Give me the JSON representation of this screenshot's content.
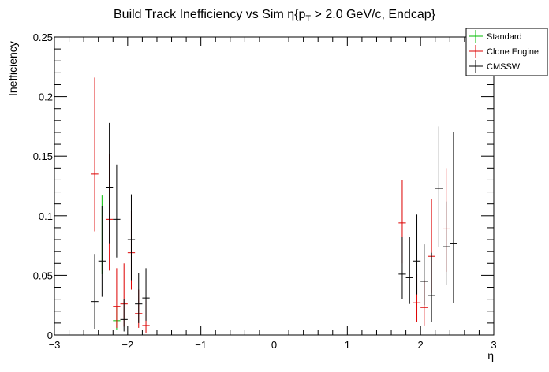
{
  "chart_data": {
    "type": "scatter",
    "title_parts": [
      "Build Track Inefficiency vs Sim η{p",
      "T",
      " > 2.0 GeV/c, Endcap}"
    ],
    "xlabel": "η",
    "ylabel": "Inefficiency",
    "xlim": [
      -3,
      3
    ],
    "ylim": [
      0,
      0.25
    ],
    "xticks": [
      -3,
      -2,
      -1,
      0,
      1,
      2,
      3
    ],
    "xtick_labels": [
      "−3",
      "−2",
      "−1",
      "0",
      "1",
      "2",
      "3"
    ],
    "yticks": [
      0,
      0.05,
      0.1,
      0.15,
      0.2,
      0.25
    ],
    "ytick_labels": [
      "0",
      "0.05",
      "0.1",
      "0.15",
      "0.2",
      "0.25"
    ],
    "grid": false,
    "legend_position": "top-right",
    "series": [
      {
        "name": "Standard",
        "color": "#00bb00",
        "points": [
          {
            "x": -2.35,
            "y": 0.083,
            "xerr": 0.05,
            "ylow": 0.051,
            "yhigh": 0.117
          },
          {
            "x": -2.15,
            "y": 0.012,
            "xerr": 0.05,
            "ylow": 0.004,
            "yhigh": 0.024
          }
        ]
      },
      {
        "name": "Clone Engine",
        "color": "#dd0000",
        "points": [
          {
            "x": -2.45,
            "y": 0.135,
            "xerr": 0.05,
            "ylow": 0.087,
            "yhigh": 0.216
          },
          {
            "x": -2.25,
            "y": 0.097,
            "xerr": 0.05,
            "ylow": 0.054,
            "yhigh": 0.152
          },
          {
            "x": -2.15,
            "y": 0.024,
            "xerr": 0.05,
            "ylow": 0.006,
            "yhigh": 0.056
          },
          {
            "x": -2.05,
            "y": 0.026,
            "xerr": 0.05,
            "ylow": 0.007,
            "yhigh": 0.06
          },
          {
            "x": -1.95,
            "y": 0.069,
            "xerr": 0.05,
            "ylow": 0.038,
            "yhigh": 0.104
          },
          {
            "x": -1.85,
            "y": 0.018,
            "xerr": 0.05,
            "ylow": 0.006,
            "yhigh": 0.038
          },
          {
            "x": -1.75,
            "y": 0.008,
            "xerr": 0.05,
            "ylow": 0.002,
            "yhigh": 0.029
          },
          {
            "x": 1.75,
            "y": 0.094,
            "xerr": 0.05,
            "ylow": 0.06,
            "yhigh": 0.13
          },
          {
            "x": 1.95,
            "y": 0.027,
            "xerr": 0.05,
            "ylow": 0.011,
            "yhigh": 0.051
          },
          {
            "x": 2.05,
            "y": 0.023,
            "xerr": 0.05,
            "ylow": 0.008,
            "yhigh": 0.046
          },
          {
            "x": 2.15,
            "y": 0.066,
            "xerr": 0.05,
            "ylow": 0.035,
            "yhigh": 0.114
          },
          {
            "x": 2.35,
            "y": 0.089,
            "xerr": 0.05,
            "ylow": 0.053,
            "yhigh": 0.14
          }
        ]
      },
      {
        "name": "CMSSW",
        "color": "#000000",
        "points": [
          {
            "x": -2.45,
            "y": 0.028,
            "xerr": 0.05,
            "ylow": 0.005,
            "yhigh": 0.068
          },
          {
            "x": -2.35,
            "y": 0.062,
            "xerr": 0.05,
            "ylow": 0.032,
            "yhigh": 0.108
          },
          {
            "x": -2.25,
            "y": 0.124,
            "xerr": 0.05,
            "ylow": 0.077,
            "yhigh": 0.178
          },
          {
            "x": -2.15,
            "y": 0.097,
            "xerr": 0.05,
            "ylow": 0.065,
            "yhigh": 0.143
          },
          {
            "x": -2.05,
            "y": 0.013,
            "xerr": 0.05,
            "ylow": 0.003,
            "yhigh": 0.03
          },
          {
            "x": -1.95,
            "y": 0.08,
            "xerr": 0.05,
            "ylow": 0.046,
            "yhigh": 0.118
          },
          {
            "x": -1.85,
            "y": 0.026,
            "xerr": 0.05,
            "ylow": 0.01,
            "yhigh": 0.052
          },
          {
            "x": -1.75,
            "y": 0.031,
            "xerr": 0.05,
            "ylow": 0.012,
            "yhigh": 0.056
          },
          {
            "x": 1.75,
            "y": 0.051,
            "xerr": 0.05,
            "ylow": 0.03,
            "yhigh": 0.082
          },
          {
            "x": 1.85,
            "y": 0.048,
            "xerr": 0.05,
            "ylow": 0.026,
            "yhigh": 0.082
          },
          {
            "x": 1.95,
            "y": 0.062,
            "xerr": 0.05,
            "ylow": 0.034,
            "yhigh": 0.101
          },
          {
            "x": 2.05,
            "y": 0.045,
            "xerr": 0.05,
            "ylow": 0.025,
            "yhigh": 0.076
          },
          {
            "x": 2.15,
            "y": 0.033,
            "xerr": 0.05,
            "ylow": 0.011,
            "yhigh": 0.069
          },
          {
            "x": 2.25,
            "y": 0.123,
            "xerr": 0.05,
            "ylow": 0.074,
            "yhigh": 0.175
          },
          {
            "x": 2.35,
            "y": 0.074,
            "xerr": 0.05,
            "ylow": 0.042,
            "yhigh": 0.112
          },
          {
            "x": 2.45,
            "y": 0.077,
            "xerr": 0.05,
            "ylow": 0.027,
            "yhigh": 0.17
          }
        ]
      }
    ]
  }
}
